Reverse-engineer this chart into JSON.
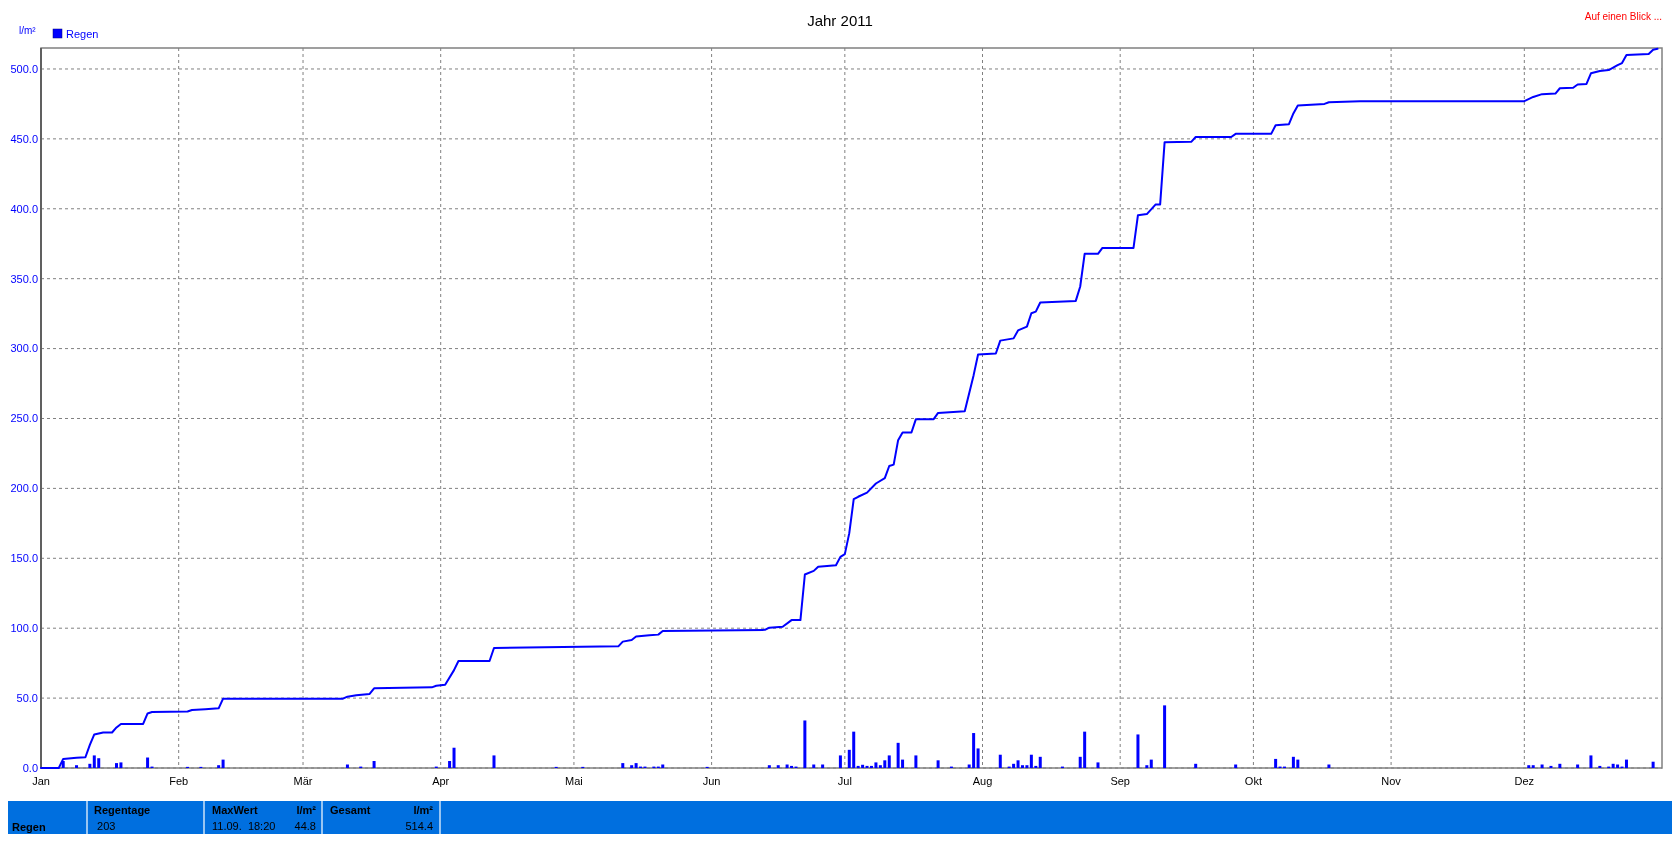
{
  "chart_data": {
    "type": "line",
    "title": "Jahr 2011",
    "ylabel": "l/m²",
    "annotations": [
      "Auf einen Blick ...",
      "Regen",
      "Regentage",
      " 203",
      "MaxWert",
      "l/m²",
      "11.09.  18:20",
      "44.8",
      "Gesamt",
      "l/m²",
      "514.4"
    ],
    "xlim": [
      "2011-01-01",
      "2012-01-01"
    ],
    "xticks": [
      {
        "value": "2011-01-01",
        "label": "Jan"
      },
      {
        "value": "2011-02-01",
        "label": "Feb"
      },
      {
        "value": "2011-03-01",
        "label": "Mär"
      },
      {
        "value": "2011-04-01",
        "label": "Apr"
      },
      {
        "value": "2011-05-01",
        "label": "Mai"
      },
      {
        "value": "2011-06-01",
        "label": "Jun"
      },
      {
        "value": "2011-07-01",
        "label": "Jul"
      },
      {
        "value": "2011-08-01",
        "label": "Aug"
      },
      {
        "value": "2011-09-01",
        "label": "Sep"
      },
      {
        "value": "2011-10-01",
        "label": "Okt"
      },
      {
        "value": "2011-11-01",
        "label": "Nov"
      },
      {
        "value": "2011-12-01",
        "label": "Dez"
      }
    ],
    "ylim": [
      0,
      515
    ],
    "yticks": [
      {
        "value": 0,
        "label": "0.0"
      },
      {
        "value": 50,
        "label": "50.0"
      },
      {
        "value": 100,
        "label": "100.0"
      },
      {
        "value": 150,
        "label": "150.0"
      },
      {
        "value": 200,
        "label": "200.0"
      },
      {
        "value": 250,
        "label": "250.0"
      },
      {
        "value": 300,
        "label": "300.0"
      },
      {
        "value": 350,
        "label": "350.0"
      },
      {
        "value": 400,
        "label": "400.0"
      },
      {
        "value": 450,
        "label": "450.0"
      },
      {
        "value": 500,
        "label": "500.0"
      }
    ],
    "grid": true,
    "legend": "top left",
    "series": [
      {
        "name": "Regen",
        "type": "bar",
        "color": "#0000ff",
        "x": [
          "2011-01-06",
          "2011-01-09",
          "2011-01-12",
          "2011-01-13",
          "2011-01-14",
          "2011-01-18",
          "2011-01-19",
          "2011-01-25",
          "2011-01-26",
          "2011-02-03",
          "2011-02-06",
          "2011-02-10",
          "2011-02-11",
          "2011-03-11",
          "2011-03-14",
          "2011-03-17",
          "2011-03-31",
          "2011-04-03",
          "2011-04-04",
          "2011-04-13",
          "2011-04-27",
          "2011-05-03",
          "2011-05-12",
          "2011-05-14",
          "2011-05-15",
          "2011-05-16",
          "2011-05-17",
          "2011-05-19",
          "2011-05-20",
          "2011-05-21",
          "2011-05-31",
          "2011-06-14",
          "2011-06-16",
          "2011-06-18",
          "2011-06-19",
          "2011-06-20",
          "2011-06-22",
          "2011-06-24",
          "2011-06-26",
          "2011-06-30",
          "2011-07-02",
          "2011-07-03",
          "2011-07-04",
          "2011-07-05",
          "2011-07-06",
          "2011-07-07",
          "2011-07-08",
          "2011-07-09",
          "2011-07-10",
          "2011-07-11",
          "2011-07-13",
          "2011-07-14",
          "2011-07-17",
          "2011-07-22",
          "2011-07-25",
          "2011-07-29",
          "2011-07-30",
          "2011-07-31",
          "2011-08-05",
          "2011-08-07",
          "2011-08-08",
          "2011-08-09",
          "2011-08-10",
          "2011-08-11",
          "2011-08-12",
          "2011-08-13",
          "2011-08-14",
          "2011-08-19",
          "2011-08-23",
          "2011-08-24",
          "2011-08-27",
          "2011-09-05",
          "2011-09-07",
          "2011-09-08",
          "2011-09-11",
          "2011-09-18",
          "2011-09-27",
          "2011-10-06",
          "2011-10-07",
          "2011-10-08",
          "2011-10-10",
          "2011-10-11",
          "2011-10-18",
          "2011-12-02",
          "2011-12-03",
          "2011-12-05",
          "2011-12-07",
          "2011-12-09",
          "2011-12-13",
          "2011-12-16",
          "2011-12-18",
          "2011-12-20",
          "2011-12-21",
          "2011-12-22",
          "2011-12-23",
          "2011-12-24",
          "2011-12-30"
        ],
        "values": [
          5,
          2,
          3,
          9,
          7,
          3.5,
          4,
          7.5,
          1,
          0.8,
          0.8,
          2,
          6,
          2.5,
          1,
          5,
          1,
          5,
          14.5,
          9,
          0.8,
          0.8,
          3.5,
          2,
          3.5,
          1,
          1,
          1,
          1,
          2.5,
          0.8,
          2,
          2,
          2.5,
          1.5,
          1,
          34,
          2.5,
          2.5,
          9,
          13,
          26,
          1.5,
          2.3,
          1.5,
          1.5,
          4,
          2,
          5.5,
          9,
          18,
          6,
          9,
          5.5,
          1,
          2.5,
          25,
          14,
          9.5,
          1,
          3,
          5.5,
          2,
          2,
          9.5,
          1.5,
          8,
          1,
          8,
          26,
          4,
          24,
          2,
          6,
          44.8,
          3,
          2.5,
          6.5,
          1,
          1,
          8,
          6,
          2.5,
          2,
          2,
          2.5,
          1.5,
          3,
          2.5,
          9,
          1.5,
          1,
          3,
          2.5,
          1,
          6,
          4.5
        ]
      },
      {
        "color": "#0000ff",
        "x": [
          "2011-01-01",
          "2011-01-05",
          "2011-01-06",
          "2011-01-09",
          "2011-01-11",
          "2011-01-12",
          "2011-01-13",
          "2011-01-15",
          "2011-01-17",
          "2011-01-18",
          "2011-01-19",
          "2011-01-24",
          "2011-01-25",
          "2011-01-26",
          "2011-02-03",
          "2011-02-04",
          "2011-02-07",
          "2011-02-10",
          "2011-02-11",
          "2011-03-10",
          "2011-03-11",
          "2011-03-13",
          "2011-03-16",
          "2011-03-17",
          "2011-03-30",
          "2011-03-31",
          "2011-04-02",
          "2011-04-04",
          "2011-04-05",
          "2011-04-12",
          "2011-04-13",
          "2011-05-11",
          "2011-05-12",
          "2011-05-14",
          "2011-05-15",
          "2011-05-18",
          "2011-05-20",
          "2011-05-21",
          "2011-06-13",
          "2011-06-14",
          "2011-06-17",
          "2011-06-19",
          "2011-06-21",
          "2011-06-22",
          "2011-06-24",
          "2011-06-25",
          "2011-06-29",
          "2011-06-30",
          "2011-07-01",
          "2011-07-02",
          "2011-07-03",
          "2011-07-04",
          "2011-07-06",
          "2011-07-08",
          "2011-07-10",
          "2011-07-11",
          "2011-07-12",
          "2011-07-13",
          "2011-07-14",
          "2011-07-16",
          "2011-07-17",
          "2011-07-21",
          "2011-07-22",
          "2011-07-28",
          "2011-07-30",
          "2011-07-31",
          "2011-08-04",
          "2011-08-05",
          "2011-08-08",
          "2011-08-09",
          "2011-08-11",
          "2011-08-12",
          "2011-08-13",
          "2011-08-14",
          "2011-08-22",
          "2011-08-23",
          "2011-08-24",
          "2011-08-27",
          "2011-08-28",
          "2011-09-04",
          "2011-09-05",
          "2011-09-07",
          "2011-09-09",
          "2011-09-10",
          "2011-09-11",
          "2011-09-17",
          "2011-09-18",
          "2011-09-26",
          "2011-09-27",
          "2011-10-05",
          "2011-10-06",
          "2011-10-09",
          "2011-10-10",
          "2011-10-11",
          "2011-10-17",
          "2011-10-18",
          "2011-10-25",
          "2011-12-01",
          "2011-12-03",
          "2011-12-05",
          "2011-12-08",
          "2011-12-09",
          "2011-12-12",
          "2011-12-13",
          "2011-12-15",
          "2011-12-16",
          "2011-12-18",
          "2011-12-20",
          "2011-12-22",
          "2011-12-23",
          "2011-12-24",
          "2011-12-29",
          "2011-12-30",
          "2011-12-31"
        ],
        "values": [
          0,
          0,
          6.5,
          7.3,
          7.7,
          16.5,
          24,
          25.4,
          25.4,
          29,
          31.5,
          31.5,
          39,
          40,
          40.4,
          41.5,
          42,
          42.7,
          49.6,
          49.6,
          51,
          52,
          53,
          57,
          57.7,
          58.8,
          59.6,
          70,
          76.5,
          76.5,
          85.8,
          87,
          90.4,
          91.5,
          94,
          95,
          95.4,
          98,
          98.8,
          100.4,
          101,
          105.8,
          105.8,
          138.4,
          141,
          144,
          145,
          151,
          153,
          168,
          192.3,
          194,
          197,
          203.5,
          207.3,
          216,
          217,
          234.5,
          240,
          240,
          249.5,
          249.5,
          254,
          255.2,
          281,
          295.8,
          296.5,
          305.7,
          307.3,
          313,
          315.7,
          325.3,
          326.4,
          333,
          334.1,
          344.4,
          367.8,
          367.8,
          372,
          372,
          395.4,
          396.2,
          403.1,
          403.1,
          447.5,
          447.9,
          451.3,
          451.3,
          453.6,
          453.6,
          459.8,
          460.5,
          468.2,
          473.9,
          475,
          476.2,
          477,
          477,
          480,
          482,
          482.4,
          486.2,
          486.6,
          488.9,
          489.3,
          496.9,
          498.5,
          499.2,
          502.7,
          504.2,
          510,
          510.7,
          513.8,
          514.4
        ]
      }
    ]
  }
}
